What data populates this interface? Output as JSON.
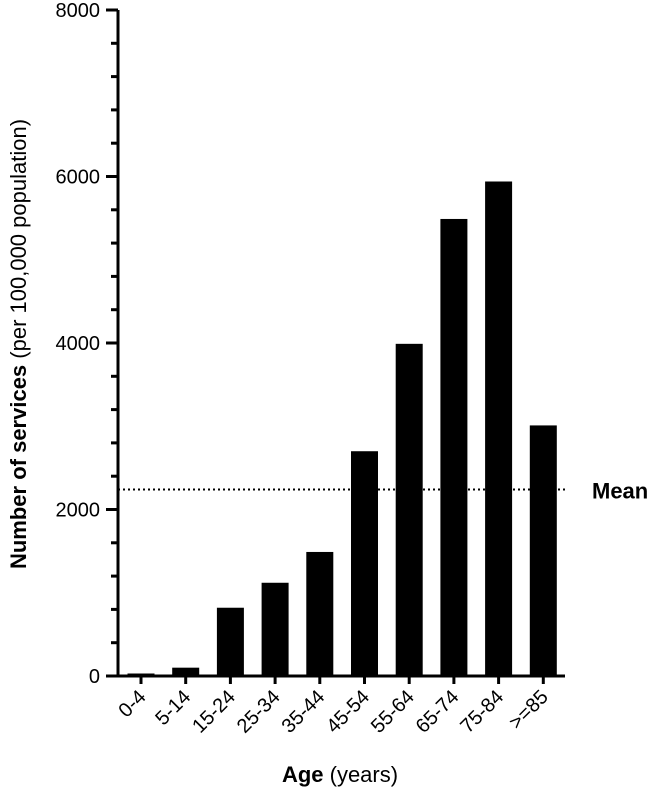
{
  "chart_data": {
    "type": "bar",
    "categories": [
      "0-4",
      "5-14",
      "15-24",
      "25-34",
      "35-44",
      "45-54",
      "55-64",
      "65-74",
      "75-84",
      ">=85"
    ],
    "values": [
      30,
      100,
      820,
      1120,
      1490,
      2700,
      3990,
      5490,
      5940,
      3010
    ],
    "ylim": [
      0,
      8000
    ],
    "yticks": [
      0,
      2000,
      4000,
      6000,
      8000
    ],
    "ylabel_bold": "Number of services",
    "ylabel_rest": " (per 100,000 population)",
    "xlabel_bold": "Age",
    "xlabel_rest": " (years)",
    "mean_value": 2240,
    "mean_label": "Mean",
    "bar_color": "#000000",
    "grid": false,
    "legend": "none"
  }
}
